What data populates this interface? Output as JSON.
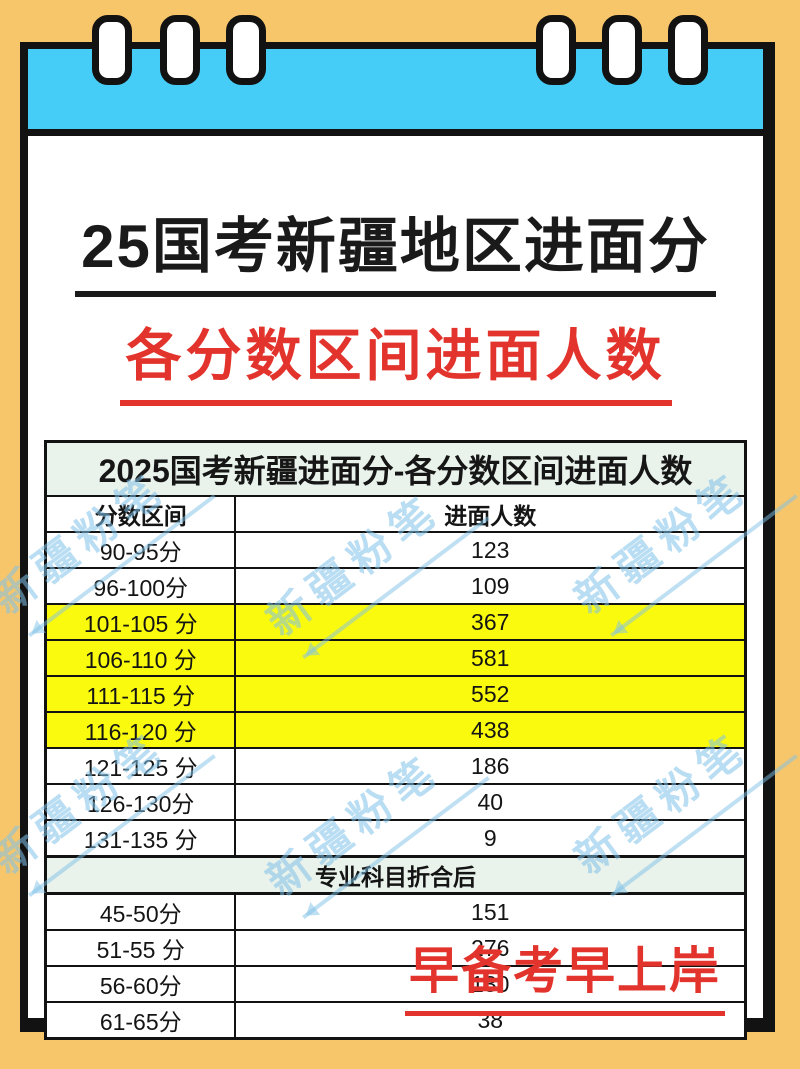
{
  "colors": {
    "background": "#F7C66B",
    "band_blue": "#45CDF7",
    "card_white": "#FFFFFF",
    "ink_black": "#121212",
    "accent_red": "#E2342D",
    "row_highlight_yellow": "#FAFA0F",
    "section_mint": "#E9F2EB",
    "watermark_blue": "#80C1E8"
  },
  "titles": {
    "main": "25国考新疆地区进面分",
    "sub": "各分数区间进面人数"
  },
  "table": {
    "title": "2025国考新疆进面分-各分数区间进面人数",
    "col_range": "分数区间",
    "col_count": "进面人数",
    "rows": [
      {
        "range": "90-95分",
        "count": "123"
      },
      {
        "range": "96-100分",
        "count": "109"
      },
      {
        "range": "101-105 分",
        "count": "367"
      },
      {
        "range": "106-110 分",
        "count": "581"
      },
      {
        "range": "111-115 分",
        "count": "552"
      },
      {
        "range": "116-120 分",
        "count": "438"
      },
      {
        "range": "121-125 分",
        "count": "186"
      },
      {
        "range": "126-130分",
        "count": "40"
      },
      {
        "range": "131-135 分",
        "count": "9"
      }
    ],
    "section_header": "专业科目折合后",
    "rows2": [
      {
        "range": "45-50分",
        "count": "151"
      },
      {
        "range": "51-55 分",
        "count": "276"
      },
      {
        "range": "56-60分",
        "count": "130"
      },
      {
        "range": "61-65分",
        "count": "38"
      }
    ]
  },
  "footer": {
    "slogan": "早备考早上岸"
  },
  "watermark": {
    "text": "新疆粉笔"
  },
  "chart_data": {
    "type": "table",
    "title": "2025国考新疆进面分-各分数区间进面人数",
    "columns": [
      "分数区间",
      "进面人数"
    ],
    "rows": [
      [
        "90-95分",
        123
      ],
      [
        "96-100分",
        109
      ],
      [
        "101-105分",
        367
      ],
      [
        "106-110分",
        581
      ],
      [
        "111-115分",
        552
      ],
      [
        "116-120分",
        438
      ],
      [
        "121-125分",
        186
      ],
      [
        "126-130分",
        40
      ],
      [
        "131-135分",
        9
      ]
    ],
    "section": "专业科目折合后",
    "section_rows": [
      [
        "45-50分",
        151
      ],
      [
        "51-55分",
        276
      ],
      [
        "56-60分",
        130
      ],
      [
        "61-65分",
        38
      ]
    ],
    "highlighted_rows": [
      "101-105分",
      "106-110分",
      "111-115分",
      "116-120分"
    ]
  }
}
